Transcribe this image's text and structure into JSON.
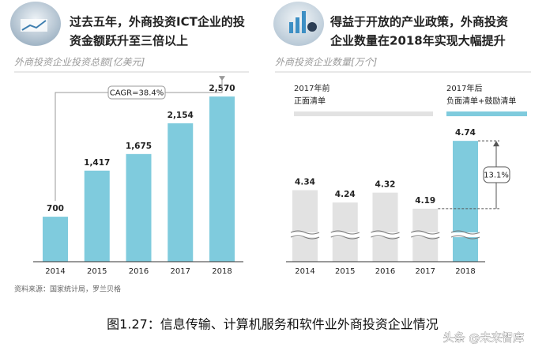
{
  "chart_data": [
    {
      "type": "bar",
      "title": [
        "过去五年，外商投资ICT企业的投",
        "资金额跃升至三倍以上"
      ],
      "subtitle": "外商投资企业投资总额[亿美元]",
      "categories": [
        "2014",
        "2015",
        "2016",
        "2017",
        "2018"
      ],
      "values": [
        700,
        1417,
        1675,
        2154,
        2570
      ],
      "value_labels": [
        "700",
        "1,417",
        "1,675",
        "2,154",
        "2,570"
      ],
      "color": "#7fcbdd",
      "ylim": [
        0,
        2700
      ],
      "annotation": "CAGR=38.4%",
      "source": "资料来源：国家统计局，罗兰贝格"
    },
    {
      "type": "bar",
      "title": [
        "得益于开放的产业政策，外商投资",
        "企业数量在2018年实现大幅提升"
      ],
      "subtitle": "外商投资企业数量[万个]",
      "categories": [
        "2014",
        "2015",
        "2016",
        "2017",
        "2018"
      ],
      "values": [
        4.34,
        4.24,
        4.32,
        4.19,
        4.74
      ],
      "colors": [
        "#e2e2e2",
        "#e2e2e2",
        "#e2e2e2",
        "#e2e2e2",
        "#7fcbdd"
      ],
      "ylim": [
        3.76,
        4.8
      ],
      "axis_break": true,
      "groups": [
        {
          "period": "2017年前",
          "label": "正面清单",
          "color": "#e2e2e2"
        },
        {
          "period": "2017年后",
          "label": "负面清单+鼓励清单",
          "color": "#7fcbdd"
        }
      ],
      "annotation": "13.1%"
    }
  ],
  "caption": "图1.27：信息传输、计算机服务和软件业外商投资企业情况",
  "watermark": "头条 @未来智库"
}
